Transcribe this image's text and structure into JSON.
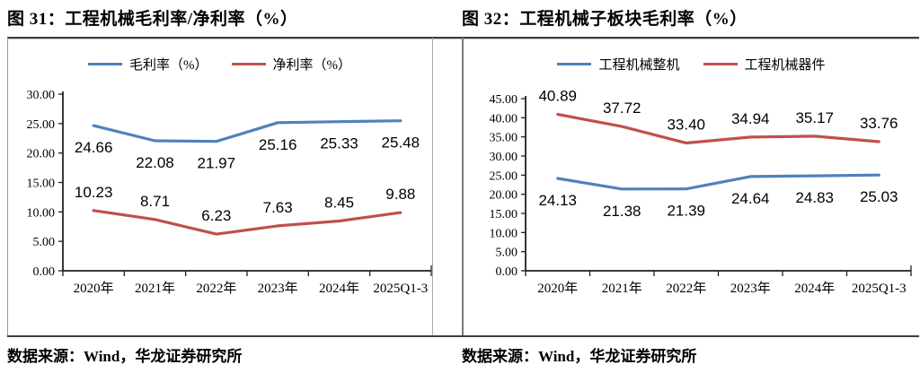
{
  "chart_data": [
    {
      "type": "line",
      "title": "图 31：工程机械毛利率/净利率（%）",
      "source": "数据来源：Wind，华龙证券研究所",
      "categories": [
        "2020年",
        "2021年",
        "2022年",
        "2023年",
        "2024年",
        "2025Q1-3"
      ],
      "series": [
        {
          "name": "毛利率（%）",
          "color": "#4F81BD",
          "values": [
            24.66,
            22.08,
            21.97,
            25.16,
            25.33,
            25.48
          ],
          "label_side": "below"
        },
        {
          "name": "净利率（%）",
          "color": "#C0504D",
          "values": [
            10.23,
            8.71,
            6.23,
            7.63,
            8.45,
            9.88
          ],
          "label_side": "above"
        }
      ],
      "ylim": [
        0,
        30
      ],
      "ytick_step": 5,
      "ytick_decimals": 2,
      "legend_position": "top",
      "grid": false,
      "axis_color": "#1f1f1f"
    },
    {
      "type": "line",
      "title": "图 32：工程机械子板块毛利率（%）",
      "source": "数据来源：Wind，华龙证券研究所",
      "categories": [
        "2020年",
        "2021年",
        "2022年",
        "2023年",
        "2024年",
        "2025Q1-3"
      ],
      "series": [
        {
          "name": "工程机械整机",
          "color": "#4F81BD",
          "values": [
            24.13,
            21.38,
            21.39,
            24.64,
            24.83,
            25.03
          ],
          "label_side": "below"
        },
        {
          "name": "工程机械器件",
          "color": "#C0504D",
          "values": [
            40.89,
            37.72,
            33.4,
            34.94,
            35.17,
            33.76
          ],
          "label_side": "above"
        }
      ],
      "ylim": [
        0,
        45
      ],
      "ytick_step": 5,
      "ytick_decimals": 2,
      "legend_position": "top",
      "grid": false,
      "axis_color": "#1f1f1f"
    }
  ]
}
